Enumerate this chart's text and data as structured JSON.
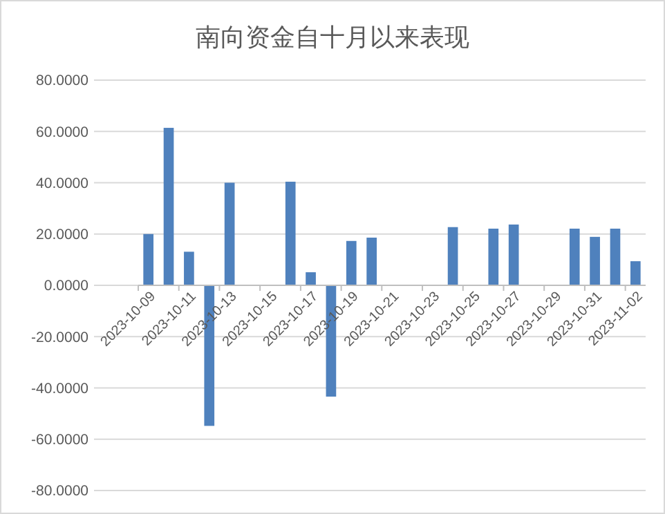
{
  "chart_data": {
    "type": "bar",
    "title": "南向资金自十月以来表现",
    "categories": [
      "2023-10-09",
      null,
      "2023-10-11",
      null,
      "2023-10-13",
      null,
      "2023-10-15",
      null,
      "2023-10-17",
      null,
      "2023-10-19",
      null,
      "2023-10-21",
      null,
      "2023-10-23",
      null,
      "2023-10-25",
      null,
      "2023-10-27",
      null,
      "2023-10-29",
      null,
      "2023-10-31",
      null,
      "2023-11-02"
    ],
    "values": [
      20.0,
      61.4,
      13.1,
      -54.8,
      40.0,
      null,
      null,
      40.4,
      5.1,
      -43.4,
      17.3,
      18.6,
      null,
      null,
      null,
      22.7,
      null,
      22.1,
      23.7,
      null,
      null,
      22.1,
      18.9,
      22.1,
      9.4
    ],
    "color": "#4f81bd",
    "ylim": [
      -80,
      80
    ],
    "yticks": [
      {
        "value": -80,
        "label": "-80.0000"
      },
      {
        "value": -60,
        "label": "-60.0000"
      },
      {
        "value": -40,
        "label": "-40.0000"
      },
      {
        "value": -20,
        "label": "-20.0000"
      },
      {
        "value": 0,
        "label": "0.0000"
      },
      {
        "value": 20,
        "label": "20.0000"
      },
      {
        "value": 40,
        "label": "40.0000"
      },
      {
        "value": 60,
        "label": "60.0000"
      },
      {
        "value": 80,
        "label": "80.0000"
      }
    ],
    "grid": "y"
  }
}
